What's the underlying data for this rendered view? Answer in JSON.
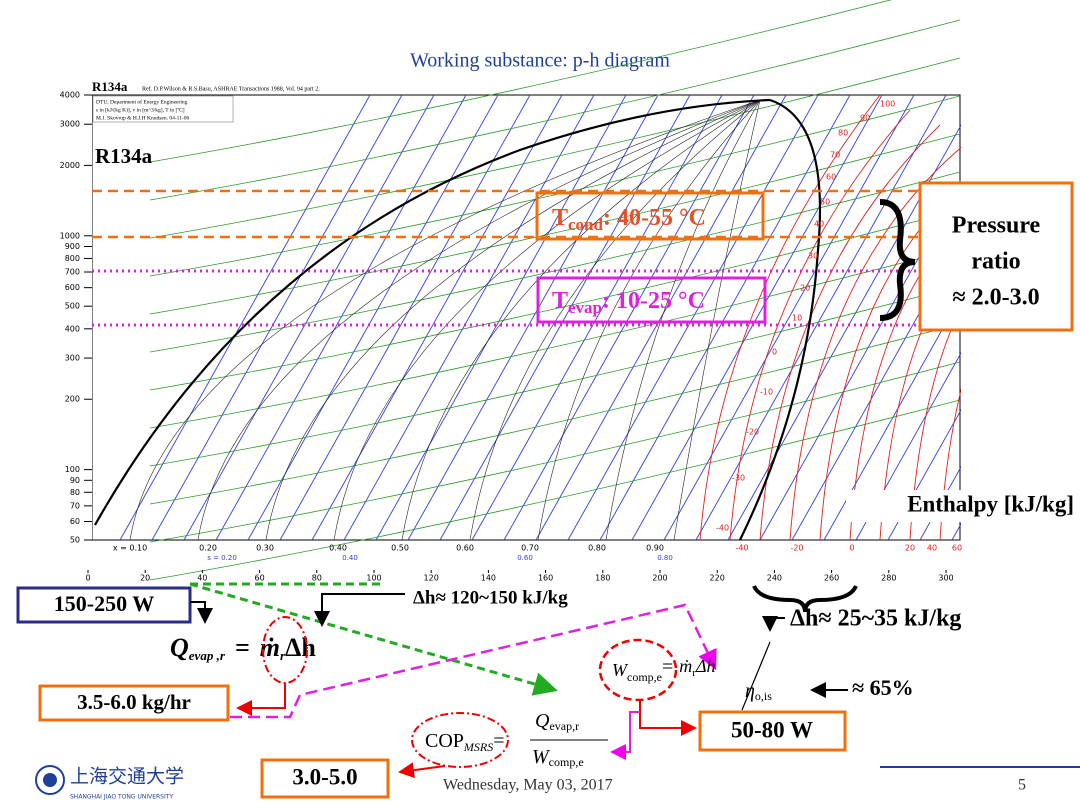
{
  "title": "Working substance: p-h diagram",
  "diagram": {
    "heading": "R134a",
    "reference": "Ref. D.P.Wilson & R.S.Basu, ASHRAE Transactions 1988, Vol. 94 part 2.",
    "info": [
      "DTU, Department of Energy Engineering",
      "s in [kJ/(kg K)], v in [m^3/kg], T in [ºC]",
      "M.J. Skovrup & H.J.H Knudsen. 04-11-06"
    ],
    "label": "R134a",
    "y_ticks": [
      4000,
      3000,
      2000,
      1000,
      900,
      800,
      700,
      600,
      500,
      400,
      300,
      200,
      100,
      90,
      80,
      70,
      60,
      50
    ],
    "x_ticks": [
      0,
      20,
      40,
      60,
      80,
      100,
      120,
      140,
      160,
      180,
      200,
      220,
      240,
      260,
      280,
      300
    ],
    "quality_labels": [
      "x = 0.10",
      "0.20",
      "0.30",
      "0.40",
      "0.50",
      "0.60",
      "0.70",
      "0.80",
      "0.90"
    ],
    "entropy_labels": [
      "s = 0.20",
      "0.40",
      "0.60",
      "0.80"
    ],
    "temperature_labels": [
      "-40",
      "-20",
      "0",
      "20",
      "40",
      "60"
    ],
    "isotherm_labels": [
      "100",
      "90",
      "80",
      "70",
      "60",
      "50",
      "40",
      "30",
      "20",
      "10",
      "0",
      "-10",
      "-20",
      "-30",
      "-40"
    ]
  },
  "annotations": {
    "t_cond": {
      "symbol": "T",
      "subscript": "cond",
      "text": ": 40-55 °C"
    },
    "t_evap": {
      "symbol": "T",
      "subscript": "evap",
      "text": ": 10-25 °C"
    },
    "pressure_ratio": [
      "Pressure",
      "ratio",
      "≈ 2.0-3.0"
    ],
    "enthalpy": "Enthalpy [kJ/kg]",
    "power_evap": "150-250 W",
    "dh_evap": "Δh≈ 120~150 kJ/kg",
    "dh_comp": "Δh≈ 25~35 kJ/kg",
    "mass_flow": "3.5-6.0 kg/hr",
    "efficiency": "≈ 65%",
    "power_comp": "50-80 W",
    "cop": "3.0-5.0"
  },
  "formulas": {
    "q_evap": {
      "lhs": "Q",
      "lhs_sub": "evap ,r",
      "eq": "=",
      "mdot": "ṁ",
      "mdot_sub": "r",
      "dh": "Δh"
    },
    "w_comp": {
      "lhs": "W",
      "lhs_sub": "comp,e",
      "eq": "=",
      "mdot": "ṁ",
      "mdot_sub": "r",
      "dh": "Δh",
      "eta": "η",
      "eta_sub": "o,is"
    },
    "cop": {
      "lhs": "COP",
      "lhs_sub": "MSRS",
      "eq": "=",
      "num": "Q",
      "num_sub": "evap,r",
      "den": "W",
      "den_sub": "comp,e"
    }
  },
  "footer": {
    "date": "Wednesday, May 03, 2017",
    "page": "5",
    "logo_cn": "上海交通大学",
    "logo_en": "SHANGHAI JIAO TONG UNIVERSITY"
  }
}
